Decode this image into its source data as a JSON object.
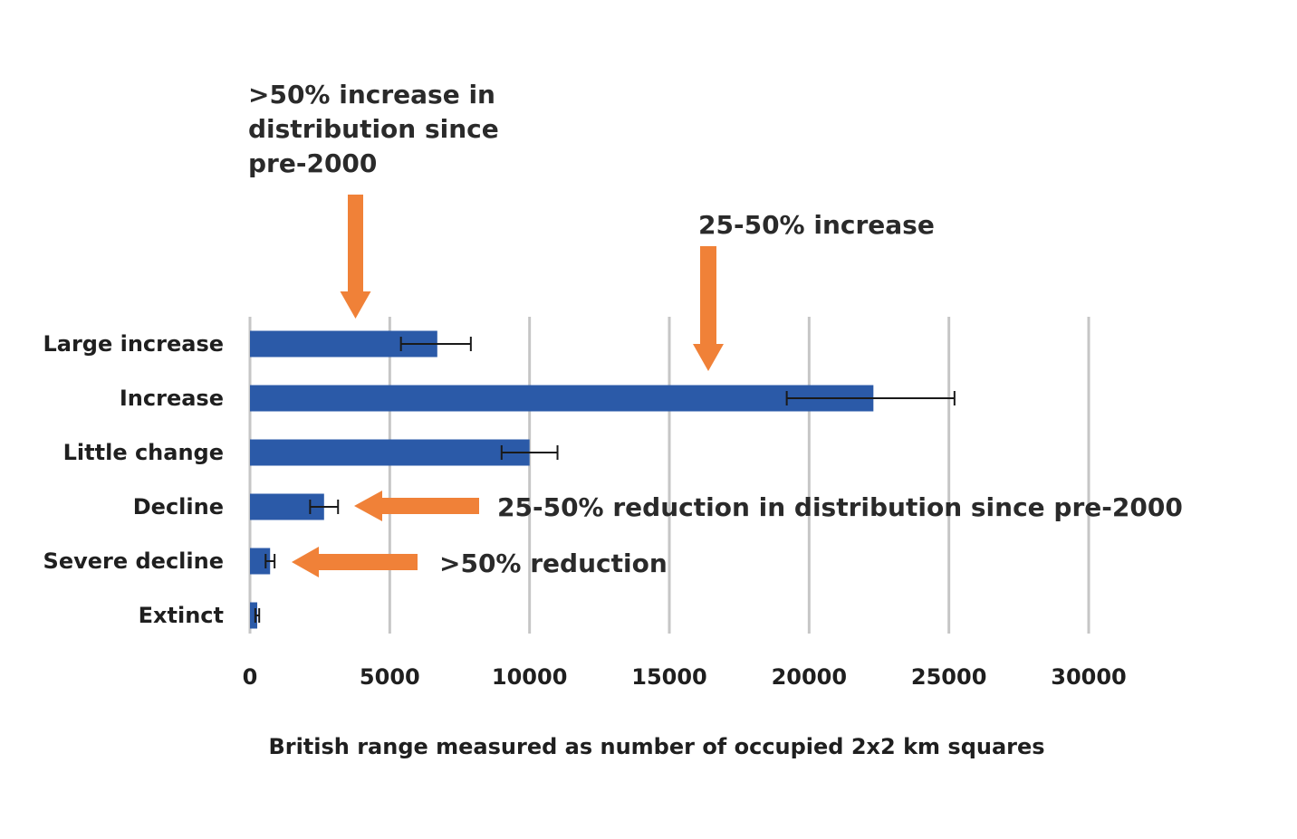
{
  "chart_data": {
    "type": "bar",
    "orientation": "horizontal",
    "title": "",
    "xlabel": "British range measured as number of occupied 2x2 km squares",
    "ylabel": "",
    "xlim": [
      0,
      30000
    ],
    "grid": true,
    "x_ticks": [
      {
        "value": 0,
        "label": "0"
      },
      {
        "value": 5000,
        "label": "5000"
      },
      {
        "value": 10000,
        "label": "10000"
      },
      {
        "value": 15000,
        "label": "15000"
      },
      {
        "value": 20000,
        "label": "20000"
      },
      {
        "value": 25000,
        "label": "25000"
      },
      {
        "value": 30000,
        "label": "30000"
      }
    ],
    "categories": [
      "Large increase",
      "Increase",
      "Little change",
      "Decline",
      "Severe decline",
      "Extinct"
    ],
    "values": [
      6700,
      22300,
      10000,
      2650,
      720,
      260
    ],
    "error_low": [
      5400,
      19200,
      9000,
      2150,
      560,
      190
    ],
    "error_high": [
      7900,
      25200,
      11000,
      3150,
      880,
      330
    ],
    "bar_color": "#2b5aa8",
    "arrow_color": "#f08138",
    "annotations": [
      {
        "id": "large-increase-note",
        "lines": [
          ">50% increase in",
          "distribution since",
          "pre-2000"
        ],
        "target_category": "Large increase",
        "direction": "down"
      },
      {
        "id": "increase-note",
        "lines": [
          "25-50% increase"
        ],
        "target_category": "Increase",
        "direction": "down"
      },
      {
        "id": "decline-note",
        "lines": [
          "25-50% reduction in distribution since pre-2000"
        ],
        "target_category": "Decline",
        "direction": "left"
      },
      {
        "id": "severe-decline-note",
        "lines": [
          ">50% reduction"
        ],
        "target_category": "Severe decline",
        "direction": "left"
      }
    ]
  }
}
